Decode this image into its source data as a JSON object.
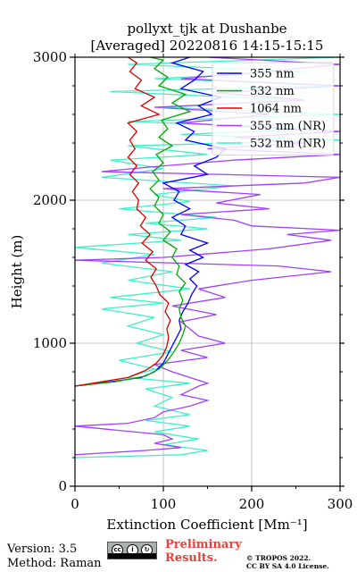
{
  "chart_data": {
    "type": "line",
    "title_line1": "pollyxt_tjk at Dushanbe",
    "title_line2": "[Averaged] 20220816 14:15-15:15",
    "xlabel": "Extinction Coefficient [Mm⁻¹]",
    "ylabel": "Height (m)",
    "xlim": [
      0,
      300
    ],
    "ylim": [
      0,
      3000
    ],
    "xticks": [
      "0",
      "100",
      "200",
      "300"
    ],
    "yticks": [
      "0",
      "1000",
      "2000",
      "3000"
    ],
    "grid": true,
    "legend_position": "top-right",
    "series": [
      {
        "name": "355 nm",
        "color": "#0000ff",
        "points": [
          [
            0,
            700
          ],
          [
            40,
            730
          ],
          [
            75,
            760
          ],
          [
            90,
            800
          ],
          [
            100,
            860
          ],
          [
            105,
            920
          ],
          [
            110,
            980
          ],
          [
            115,
            1040
          ],
          [
            120,
            1100
          ],
          [
            118,
            1160
          ],
          [
            122,
            1220
          ],
          [
            128,
            1280
          ],
          [
            132,
            1340
          ],
          [
            138,
            1400
          ],
          [
            130,
            1450
          ],
          [
            140,
            1500
          ],
          [
            125,
            1550
          ],
          [
            145,
            1600
          ],
          [
            130,
            1650
          ],
          [
            150,
            1700
          ],
          [
            120,
            1760
          ],
          [
            125,
            1820
          ],
          [
            110,
            1880
          ],
          [
            130,
            1940
          ],
          [
            112,
            2000
          ],
          [
            118,
            2060
          ],
          [
            100,
            2120
          ],
          [
            150,
            2180
          ],
          [
            135,
            2240
          ],
          [
            160,
            2300
          ],
          [
            170,
            2360
          ],
          [
            125,
            2420
          ],
          [
            135,
            2480
          ],
          [
            115,
            2540
          ],
          [
            155,
            2600
          ],
          [
            140,
            2660
          ],
          [
            165,
            2720
          ],
          [
            120,
            2780
          ],
          [
            135,
            2840
          ],
          [
            145,
            2900
          ],
          [
            110,
            2960
          ],
          [
            130,
            3000
          ]
        ]
      },
      {
        "name": "532 nm",
        "color": "#00aa00",
        "points": [
          [
            0,
            700
          ],
          [
            45,
            730
          ],
          [
            80,
            770
          ],
          [
            95,
            820
          ],
          [
            105,
            880
          ],
          [
            112,
            940
          ],
          [
            118,
            1000
          ],
          [
            122,
            1060
          ],
          [
            125,
            1120
          ],
          [
            120,
            1180
          ],
          [
            118,
            1240
          ],
          [
            122,
            1300
          ],
          [
            118,
            1360
          ],
          [
            125,
            1420
          ],
          [
            115,
            1480
          ],
          [
            118,
            1540
          ],
          [
            110,
            1600
          ],
          [
            115,
            1660
          ],
          [
            100,
            1720
          ],
          [
            108,
            1780
          ],
          [
            95,
            1840
          ],
          [
            100,
            1900
          ],
          [
            90,
            1960
          ],
          [
            95,
            2020
          ],
          [
            85,
            2080
          ],
          [
            95,
            2140
          ],
          [
            88,
            2200
          ],
          [
            100,
            2260
          ],
          [
            92,
            2320
          ],
          [
            110,
            2380
          ],
          [
            95,
            2440
          ],
          [
            105,
            2500
          ],
          [
            98,
            2560
          ],
          [
            130,
            2620
          ],
          [
            110,
            2680
          ],
          [
            125,
            2740
          ],
          [
            95,
            2800
          ],
          [
            105,
            2860
          ],
          [
            90,
            2920
          ],
          [
            100,
            2980
          ],
          [
            85,
            3000
          ]
        ]
      },
      {
        "name": "1064 nm",
        "color": "#dd0000",
        "points": [
          [
            0,
            700
          ],
          [
            30,
            730
          ],
          [
            60,
            760
          ],
          [
            80,
            810
          ],
          [
            92,
            860
          ],
          [
            100,
            920
          ],
          [
            104,
            980
          ],
          [
            106,
            1040
          ],
          [
            104,
            1100
          ],
          [
            108,
            1160
          ],
          [
            102,
            1220
          ],
          [
            106,
            1280
          ],
          [
            96,
            1340
          ],
          [
            92,
            1400
          ],
          [
            86,
            1460
          ],
          [
            92,
            1520
          ],
          [
            80,
            1580
          ],
          [
            88,
            1640
          ],
          [
            76,
            1700
          ],
          [
            85,
            1760
          ],
          [
            74,
            1820
          ],
          [
            80,
            1880
          ],
          [
            70,
            1940
          ],
          [
            72,
            2000
          ],
          [
            65,
            2060
          ],
          [
            72,
            2120
          ],
          [
            62,
            2180
          ],
          [
            70,
            2240
          ],
          [
            60,
            2300
          ],
          [
            68,
            2360
          ],
          [
            62,
            2420
          ],
          [
            70,
            2480
          ],
          [
            60,
            2540
          ],
          [
            95,
            2600
          ],
          [
            75,
            2660
          ],
          [
            90,
            2720
          ],
          [
            68,
            2780
          ],
          [
            75,
            2840
          ],
          [
            62,
            2900
          ],
          [
            70,
            2960
          ],
          [
            60,
            3000
          ]
        ]
      },
      {
        "name": "355 nm (NR)",
        "color": "#a040ff",
        "points": [
          [
            0,
            220
          ],
          [
            80,
            250
          ],
          [
            120,
            270
          ],
          [
            90,
            300
          ],
          [
            110,
            330
          ],
          [
            100,
            360
          ],
          [
            0,
            420
          ],
          [
            60,
            440
          ],
          [
            90,
            480
          ],
          [
            100,
            520
          ],
          [
            130,
            560
          ],
          [
            150,
            600
          ],
          [
            120,
            640
          ],
          [
            140,
            700
          ],
          [
            150,
            720
          ],
          [
            130,
            760
          ],
          [
            110,
            800
          ],
          [
            90,
            850
          ],
          [
            150,
            900
          ],
          [
            120,
            950
          ],
          [
            170,
            1000
          ],
          [
            140,
            1050
          ],
          [
            130,
            1100
          ],
          [
            120,
            1150
          ],
          [
            160,
            1200
          ],
          [
            110,
            1260
          ],
          [
            170,
            1320
          ],
          [
            140,
            1380
          ],
          [
            200,
            1440
          ],
          [
            290,
            1500
          ],
          [
            230,
            1540
          ],
          [
            0,
            1580
          ],
          [
            100,
            1600
          ],
          [
            220,
            1660
          ],
          [
            290,
            1720
          ],
          [
            240,
            1760
          ],
          [
            300,
            1790
          ],
          [
            200,
            1820
          ],
          [
            180,
            1860
          ],
          [
            120,
            1900
          ],
          [
            220,
            1940
          ],
          [
            160,
            1980
          ],
          [
            210,
            2040
          ],
          [
            100,
            2080
          ],
          [
            260,
            2120
          ],
          [
            300,
            2160
          ],
          [
            30,
            2200
          ],
          [
            100,
            2240
          ],
          [
            180,
            2280
          ],
          [
            300,
            2320
          ],
          [
            150,
            2360
          ],
          [
            260,
            2400
          ],
          [
            180,
            2440
          ],
          [
            300,
            2480
          ],
          [
            120,
            2540
          ],
          [
            220,
            2600
          ],
          [
            90,
            2650
          ],
          [
            260,
            2700
          ],
          [
            160,
            2750
          ],
          [
            300,
            2800
          ],
          [
            120,
            2850
          ],
          [
            220,
            2900
          ],
          [
            300,
            2950
          ],
          [
            150,
            3000
          ]
        ]
      },
      {
        "name": "532 nm (NR)",
        "color": "#40f0c8",
        "points": [
          [
            0,
            200
          ],
          [
            120,
            220
          ],
          [
            150,
            250
          ],
          [
            100,
            290
          ],
          [
            140,
            330
          ],
          [
            90,
            380
          ],
          [
            130,
            420
          ],
          [
            80,
            460
          ],
          [
            130,
            500
          ],
          [
            90,
            560
          ],
          [
            110,
            620
          ],
          [
            80,
            680
          ],
          [
            130,
            720
          ],
          [
            60,
            760
          ],
          [
            90,
            820
          ],
          [
            50,
            880
          ],
          [
            110,
            940
          ],
          [
            70,
            1000
          ],
          [
            100,
            1060
          ],
          [
            60,
            1120
          ],
          [
            90,
            1180
          ],
          [
            30,
            1240
          ],
          [
            100,
            1280
          ],
          [
            40,
            1320
          ],
          [
            130,
            1380
          ],
          [
            60,
            1440
          ],
          [
            110,
            1500
          ],
          [
            30,
            1560
          ],
          [
            90,
            1620
          ],
          [
            0,
            1670
          ],
          [
            120,
            1720
          ],
          [
            60,
            1760
          ],
          [
            150,
            1800
          ],
          [
            80,
            1840
          ],
          [
            160,
            1880
          ],
          [
            50,
            1940
          ],
          [
            130,
            1990
          ],
          [
            90,
            2040
          ],
          [
            180,
            2100
          ],
          [
            30,
            2160
          ],
          [
            100,
            2220
          ],
          [
            40,
            2280
          ],
          [
            150,
            2320
          ],
          [
            60,
            2380
          ],
          [
            300,
            2420
          ],
          [
            120,
            2460
          ],
          [
            280,
            2500
          ],
          [
            60,
            2550
          ],
          [
            300,
            2600
          ],
          [
            100,
            2650
          ],
          [
            250,
            2700
          ],
          [
            40,
            2760
          ],
          [
            300,
            2800
          ],
          [
            90,
            2850
          ],
          [
            260,
            2900
          ],
          [
            60,
            2950
          ],
          [
            300,
            3000
          ]
        ]
      }
    ]
  },
  "footer": {
    "version": "Version: 3.5",
    "method": "Method: Raman",
    "preliminary_line1": "Preliminary",
    "preliminary_line2": "Results.",
    "copyright_line1": "© TROPOS 2022.",
    "copyright_line2": "CC BY SA 4.0 License.",
    "cc_logo": "cc-by-sa-logo"
  }
}
